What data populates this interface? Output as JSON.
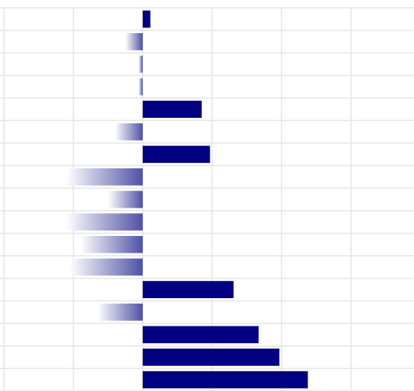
{
  "chart_data": {
    "type": "bar",
    "orientation": "horizontal",
    "categories": [
      null,
      null,
      null,
      null,
      null,
      null,
      null,
      null,
      null,
      null,
      null,
      null,
      null,
      null,
      null,
      null,
      null
    ],
    "values": [
      0.11,
      -0.25,
      -0.06,
      -0.06,
      0.85,
      -0.4,
      0.97,
      -1.1,
      -0.5,
      -1.1,
      -0.9,
      -1.05,
      1.31,
      -0.65,
      1.67,
      1.97,
      2.38
    ],
    "color": "#000080",
    "negative_color": "#4f52a6",
    "xlim": [
      -2,
      3.91
    ],
    "xticks": [
      -2,
      -1,
      0,
      1,
      2,
      3
    ],
    "grid": true
  }
}
